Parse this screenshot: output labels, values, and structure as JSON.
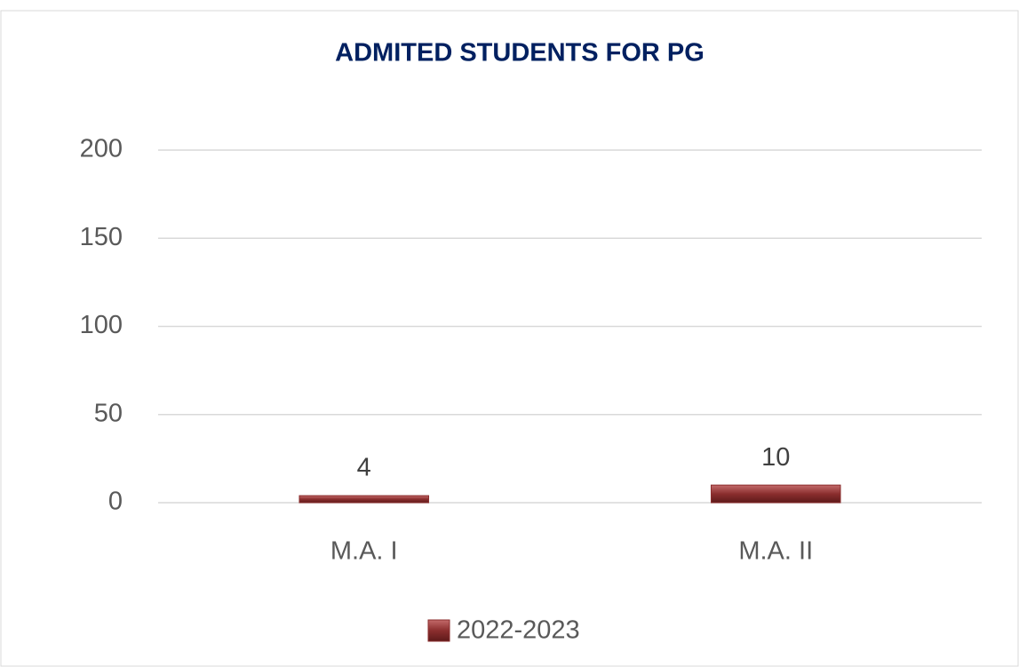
{
  "chart_data": {
    "type": "bar",
    "title": "ADMITED STUDENTS FOR PG",
    "categories": [
      "M.A. I",
      "M.A. II"
    ],
    "series": [
      {
        "name": "2022-2023",
        "color": "#8b2e2e",
        "values": [
          4,
          10
        ]
      }
    ],
    "ylim": [
      0,
      200
    ],
    "yticks": [
      0,
      50,
      100,
      150,
      200
    ],
    "grid": true,
    "legend": "bottom"
  }
}
